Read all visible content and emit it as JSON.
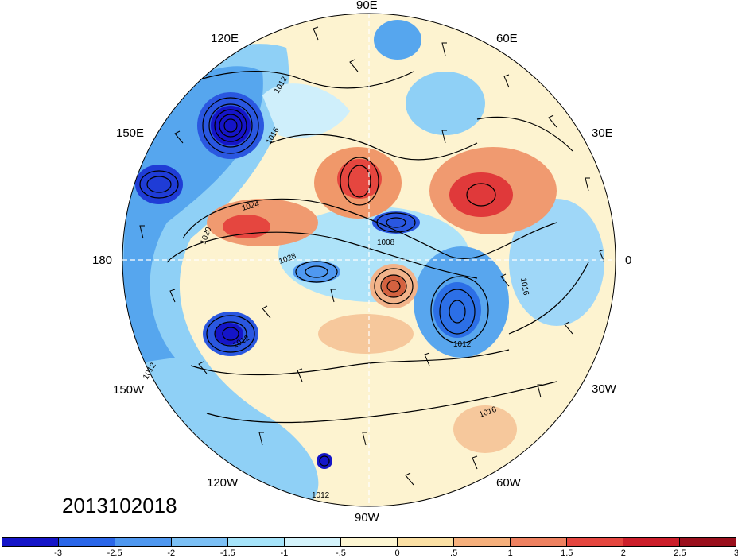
{
  "date_stamp": "2013102018",
  "longitude_labels": {
    "lon_90e": "90E",
    "lon_60e": "60E",
    "lon_30e": "30E",
    "lon_0": "0",
    "lon_30w": "30W",
    "lon_60w": "60W",
    "lon_90w": "90W",
    "lon_120w": "120W",
    "lon_150w": "150W",
    "lon_180": "180",
    "lon_150e": "150E",
    "lon_120e": "120E"
  },
  "isobar_labels": [
    "1012",
    "1016",
    "1020",
    "1024",
    "1028",
    "1008",
    "1012",
    "1012",
    "1016",
    "1012",
    "1012",
    "1016"
  ],
  "colorbar": {
    "colors": [
      "#1515c8",
      "#2a66e8",
      "#4f98f0",
      "#7cc0f5",
      "#a6e4fa",
      "#d4f3fb",
      "#fdf6d2",
      "#fbe0a4",
      "#f6b07c",
      "#ee8160",
      "#e5463f",
      "#cc1e2a",
      "#9a0f1c"
    ],
    "tick_labels": [
      "-3",
      "-2.5",
      "-2",
      "-1.5",
      "-1",
      "-.5",
      "0",
      ".5",
      "1",
      "1.5",
      "2",
      "2.5",
      "3"
    ]
  },
  "anomaly_centers": [
    {
      "name": "low-anomaly-120e",
      "value": -3
    },
    {
      "name": "low-anomaly-150e",
      "value": -2.5
    },
    {
      "name": "low-anomaly-150w",
      "value": -3
    },
    {
      "name": "low-anomaly-north-atlantic",
      "value": -2.5
    },
    {
      "name": "low-anomaly-pole",
      "value": -2
    },
    {
      "name": "high-anomaly-siberia",
      "value": 2.5
    },
    {
      "name": "high-anomaly-west-russia",
      "value": 2.5
    },
    {
      "name": "high-anomaly-bering",
      "value": 1.5
    },
    {
      "name": "high-anomaly-greenland",
      "value": 1.5
    }
  ]
}
